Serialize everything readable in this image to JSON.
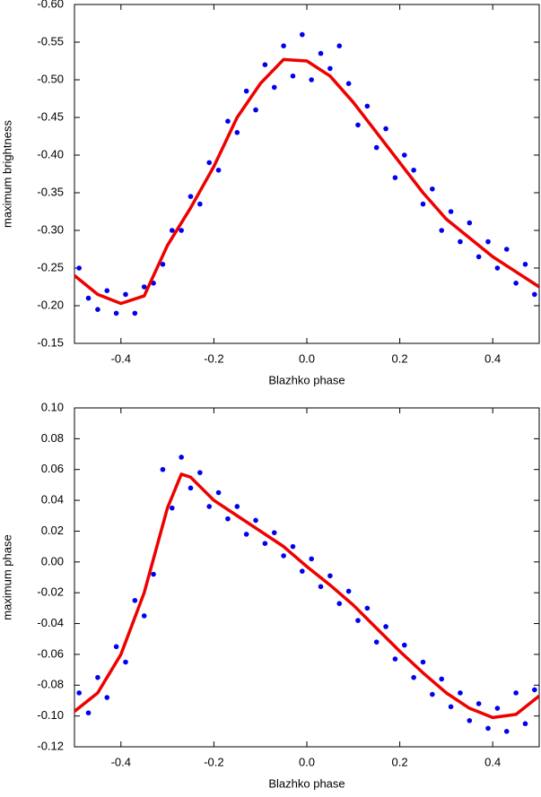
{
  "chart_data": [
    {
      "type": "scatter",
      "xlabel": "Blazhko phase",
      "ylabel": "maximum brightness",
      "xlim": [
        -0.5,
        0.5
      ],
      "xticks": [
        -0.4,
        -0.2,
        {
          "value": 0,
          "label": "0.0"
        },
        0.2,
        0.4
      ],
      "ylim": [
        -0.15,
        -0.6
      ],
      "yticks": [
        {
          "value": -0.6,
          "label": "-0.60"
        },
        -0.55,
        {
          "value": -0.5,
          "label": "-0.50"
        },
        -0.45,
        {
          "value": -0.4,
          "label": "-0.40"
        },
        -0.35,
        {
          "value": -0.3,
          "label": "-0.30"
        },
        -0.25,
        {
          "value": -0.2,
          "label": "-0.20"
        },
        -0.15
      ],
      "series": [
        {
          "style": "points",
          "color": "#0000ee",
          "x": [
            -0.49,
            -0.47,
            -0.45,
            -0.43,
            -0.41,
            -0.39,
            -0.37,
            -0.35,
            -0.33,
            -0.31,
            -0.29,
            -0.27,
            -0.25,
            -0.23,
            -0.21,
            -0.19,
            -0.17,
            -0.15,
            -0.13,
            -0.11,
            -0.09,
            -0.07,
            -0.05,
            -0.03,
            -0.01,
            0.01,
            0.03,
            0.05,
            0.07,
            0.09,
            0.11,
            0.13,
            0.15,
            0.17,
            0.19,
            0.21,
            0.23,
            0.25,
            0.27,
            0.29,
            0.31,
            0.33,
            0.35,
            0.37,
            0.39,
            0.41,
            0.43,
            0.45,
            0.47,
            0.49
          ],
          "values": [
            -0.25,
            -0.21,
            -0.195,
            -0.22,
            -0.19,
            -0.215,
            -0.19,
            -0.225,
            -0.23,
            -0.255,
            -0.3,
            -0.3,
            -0.345,
            -0.335,
            -0.39,
            -0.38,
            -0.445,
            -0.43,
            -0.485,
            -0.46,
            -0.52,
            -0.49,
            -0.545,
            -0.505,
            -0.56,
            -0.5,
            -0.535,
            -0.515,
            -0.545,
            -0.495,
            -0.44,
            -0.465,
            -0.41,
            -0.435,
            -0.37,
            -0.4,
            -0.38,
            -0.335,
            -0.355,
            -0.3,
            -0.325,
            -0.285,
            -0.31,
            -0.265,
            -0.285,
            -0.25,
            -0.275,
            -0.23,
            -0.255,
            -0.215
          ]
        },
        {
          "style": "line",
          "color": "#ee0000",
          "x": [
            -0.5,
            -0.45,
            -0.4,
            -0.35,
            -0.3,
            -0.25,
            -0.2,
            -0.15,
            -0.1,
            -0.05,
            0,
            0.05,
            0.1,
            0.15,
            0.2,
            0.25,
            0.3,
            0.35,
            0.4,
            0.45,
            0.5
          ],
          "values": [
            -0.24,
            -0.215,
            -0.203,
            -0.213,
            -0.28,
            -0.33,
            -0.385,
            -0.45,
            -0.495,
            -0.527,
            -0.525,
            -0.505,
            -0.47,
            -0.43,
            -0.39,
            -0.35,
            -0.315,
            -0.29,
            -0.265,
            -0.245,
            -0.225
          ]
        }
      ]
    },
    {
      "type": "scatter",
      "xlabel": "Blazhko phase",
      "ylabel": "maximum phase",
      "xlim": [
        -0.5,
        0.5
      ],
      "xticks": [
        -0.4,
        -0.2,
        {
          "value": 0,
          "label": "0.0"
        },
        0.2,
        0.4
      ],
      "ylim": [
        -0.12,
        0.1
      ],
      "yticks": [
        {
          "value": 0.1,
          "label": "0.10"
        },
        0.08,
        0.06,
        0.04,
        0.02,
        {
          "value": 0,
          "label": "0.00"
        },
        -0.02,
        -0.04,
        -0.06,
        -0.08,
        {
          "value": -0.1,
          "label": "-0.10"
        },
        -0.12
      ],
      "series": [
        {
          "style": "points",
          "color": "#0000ee",
          "x": [
            -0.49,
            -0.47,
            -0.45,
            -0.43,
            -0.41,
            -0.39,
            -0.37,
            -0.35,
            -0.33,
            -0.31,
            -0.29,
            -0.27,
            -0.25,
            -0.23,
            -0.21,
            -0.19,
            -0.17,
            -0.15,
            -0.13,
            -0.11,
            -0.09,
            -0.07,
            -0.05,
            -0.03,
            -0.01,
            0.01,
            0.03,
            0.05,
            0.07,
            0.09,
            0.11,
            0.13,
            0.15,
            0.17,
            0.19,
            0.21,
            0.23,
            0.25,
            0.27,
            0.29,
            0.31,
            0.33,
            0.35,
            0.37,
            0.39,
            0.41,
            0.43,
            0.45,
            0.47,
            0.49
          ],
          "values": [
            -0.085,
            -0.098,
            -0.075,
            -0.088,
            -0.055,
            -0.065,
            -0.025,
            -0.035,
            -0.008,
            0.06,
            0.035,
            0.068,
            0.048,
            0.058,
            0.036,
            0.045,
            0.028,
            0.036,
            0.018,
            0.027,
            0.012,
            0.019,
            0.004,
            0.01,
            -0.006,
            0.002,
            -0.016,
            -0.009,
            -0.027,
            -0.019,
            -0.038,
            -0.03,
            -0.052,
            -0.042,
            -0.063,
            -0.054,
            -0.075,
            -0.065,
            -0.086,
            -0.076,
            -0.094,
            -0.085,
            -0.103,
            -0.092,
            -0.108,
            -0.095,
            -0.11,
            -0.085,
            -0.105,
            -0.083
          ]
        },
        {
          "style": "line",
          "color": "#ee0000",
          "x": [
            -0.5,
            -0.45,
            -0.4,
            -0.35,
            -0.3,
            -0.27,
            -0.25,
            -0.2,
            -0.15,
            -0.1,
            -0.05,
            0,
            0.05,
            0.1,
            0.15,
            0.2,
            0.25,
            0.3,
            0.35,
            0.4,
            0.45,
            0.5
          ],
          "values": [
            -0.097,
            -0.085,
            -0.06,
            -0.02,
            0.035,
            0.057,
            0.055,
            0.04,
            0.03,
            0.02,
            0.01,
            -0.003,
            -0.015,
            -0.028,
            -0.043,
            -0.058,
            -0.072,
            -0.085,
            -0.095,
            -0.101,
            -0.099,
            -0.087
          ]
        }
      ]
    }
  ]
}
